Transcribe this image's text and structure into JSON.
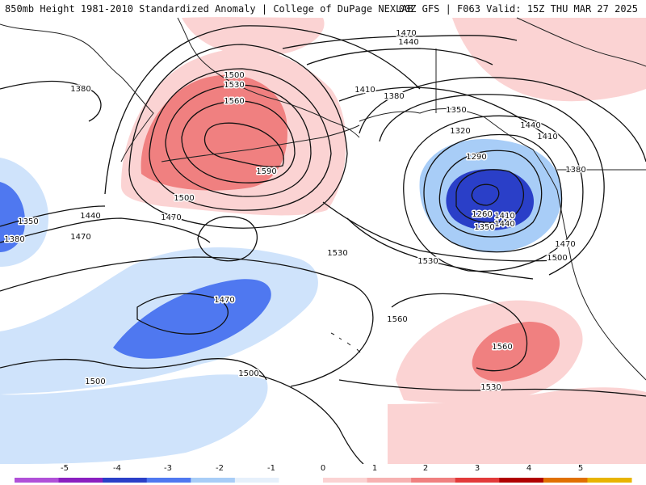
{
  "header": {
    "title_left": "850mb Height 1981-2010 Standardized Anomaly | College of DuPage NEXLAB",
    "title_right": "00Z GFS | F063 Valid: 15Z THU MAR 27 2025"
  },
  "colors": {
    "neg5": "#b050d8",
    "neg4": "#8a1fc0",
    "neg3": "#2a3fc8",
    "neg2": "#4f78f0",
    "neg1": "#a8cdf7",
    "neg05": "#cfe3fb",
    "pos05": "#fbd3d3",
    "pos1": "#f7b2b2",
    "pos2": "#f08080",
    "pos3": "#e23a3a",
    "pos4": "#b00000",
    "pos5": "#e8b400",
    "contour": "#111111",
    "coast": "#222222"
  },
  "colorbar": {
    "labels": [
      "-5",
      "-4",
      "-3",
      "-2",
      "-1",
      "0",
      "1",
      "2",
      "3",
      "4",
      "5"
    ]
  },
  "contour_labels": [
    "1380",
    "1500",
    "1530",
    "1560",
    "1590",
    "1500",
    "1470",
    "1440",
    "1470",
    "1350",
    "1380",
    "1470",
    "1440",
    "1410",
    "1380",
    "1350",
    "1320",
    "1290",
    "1260",
    "1350",
    "1410",
    "1440",
    "1380",
    "1440",
    "1410",
    "1470",
    "1500",
    "1530",
    "1530",
    "1560",
    "1560",
    "1530",
    "1470",
    "1500",
    "1500"
  ]
}
